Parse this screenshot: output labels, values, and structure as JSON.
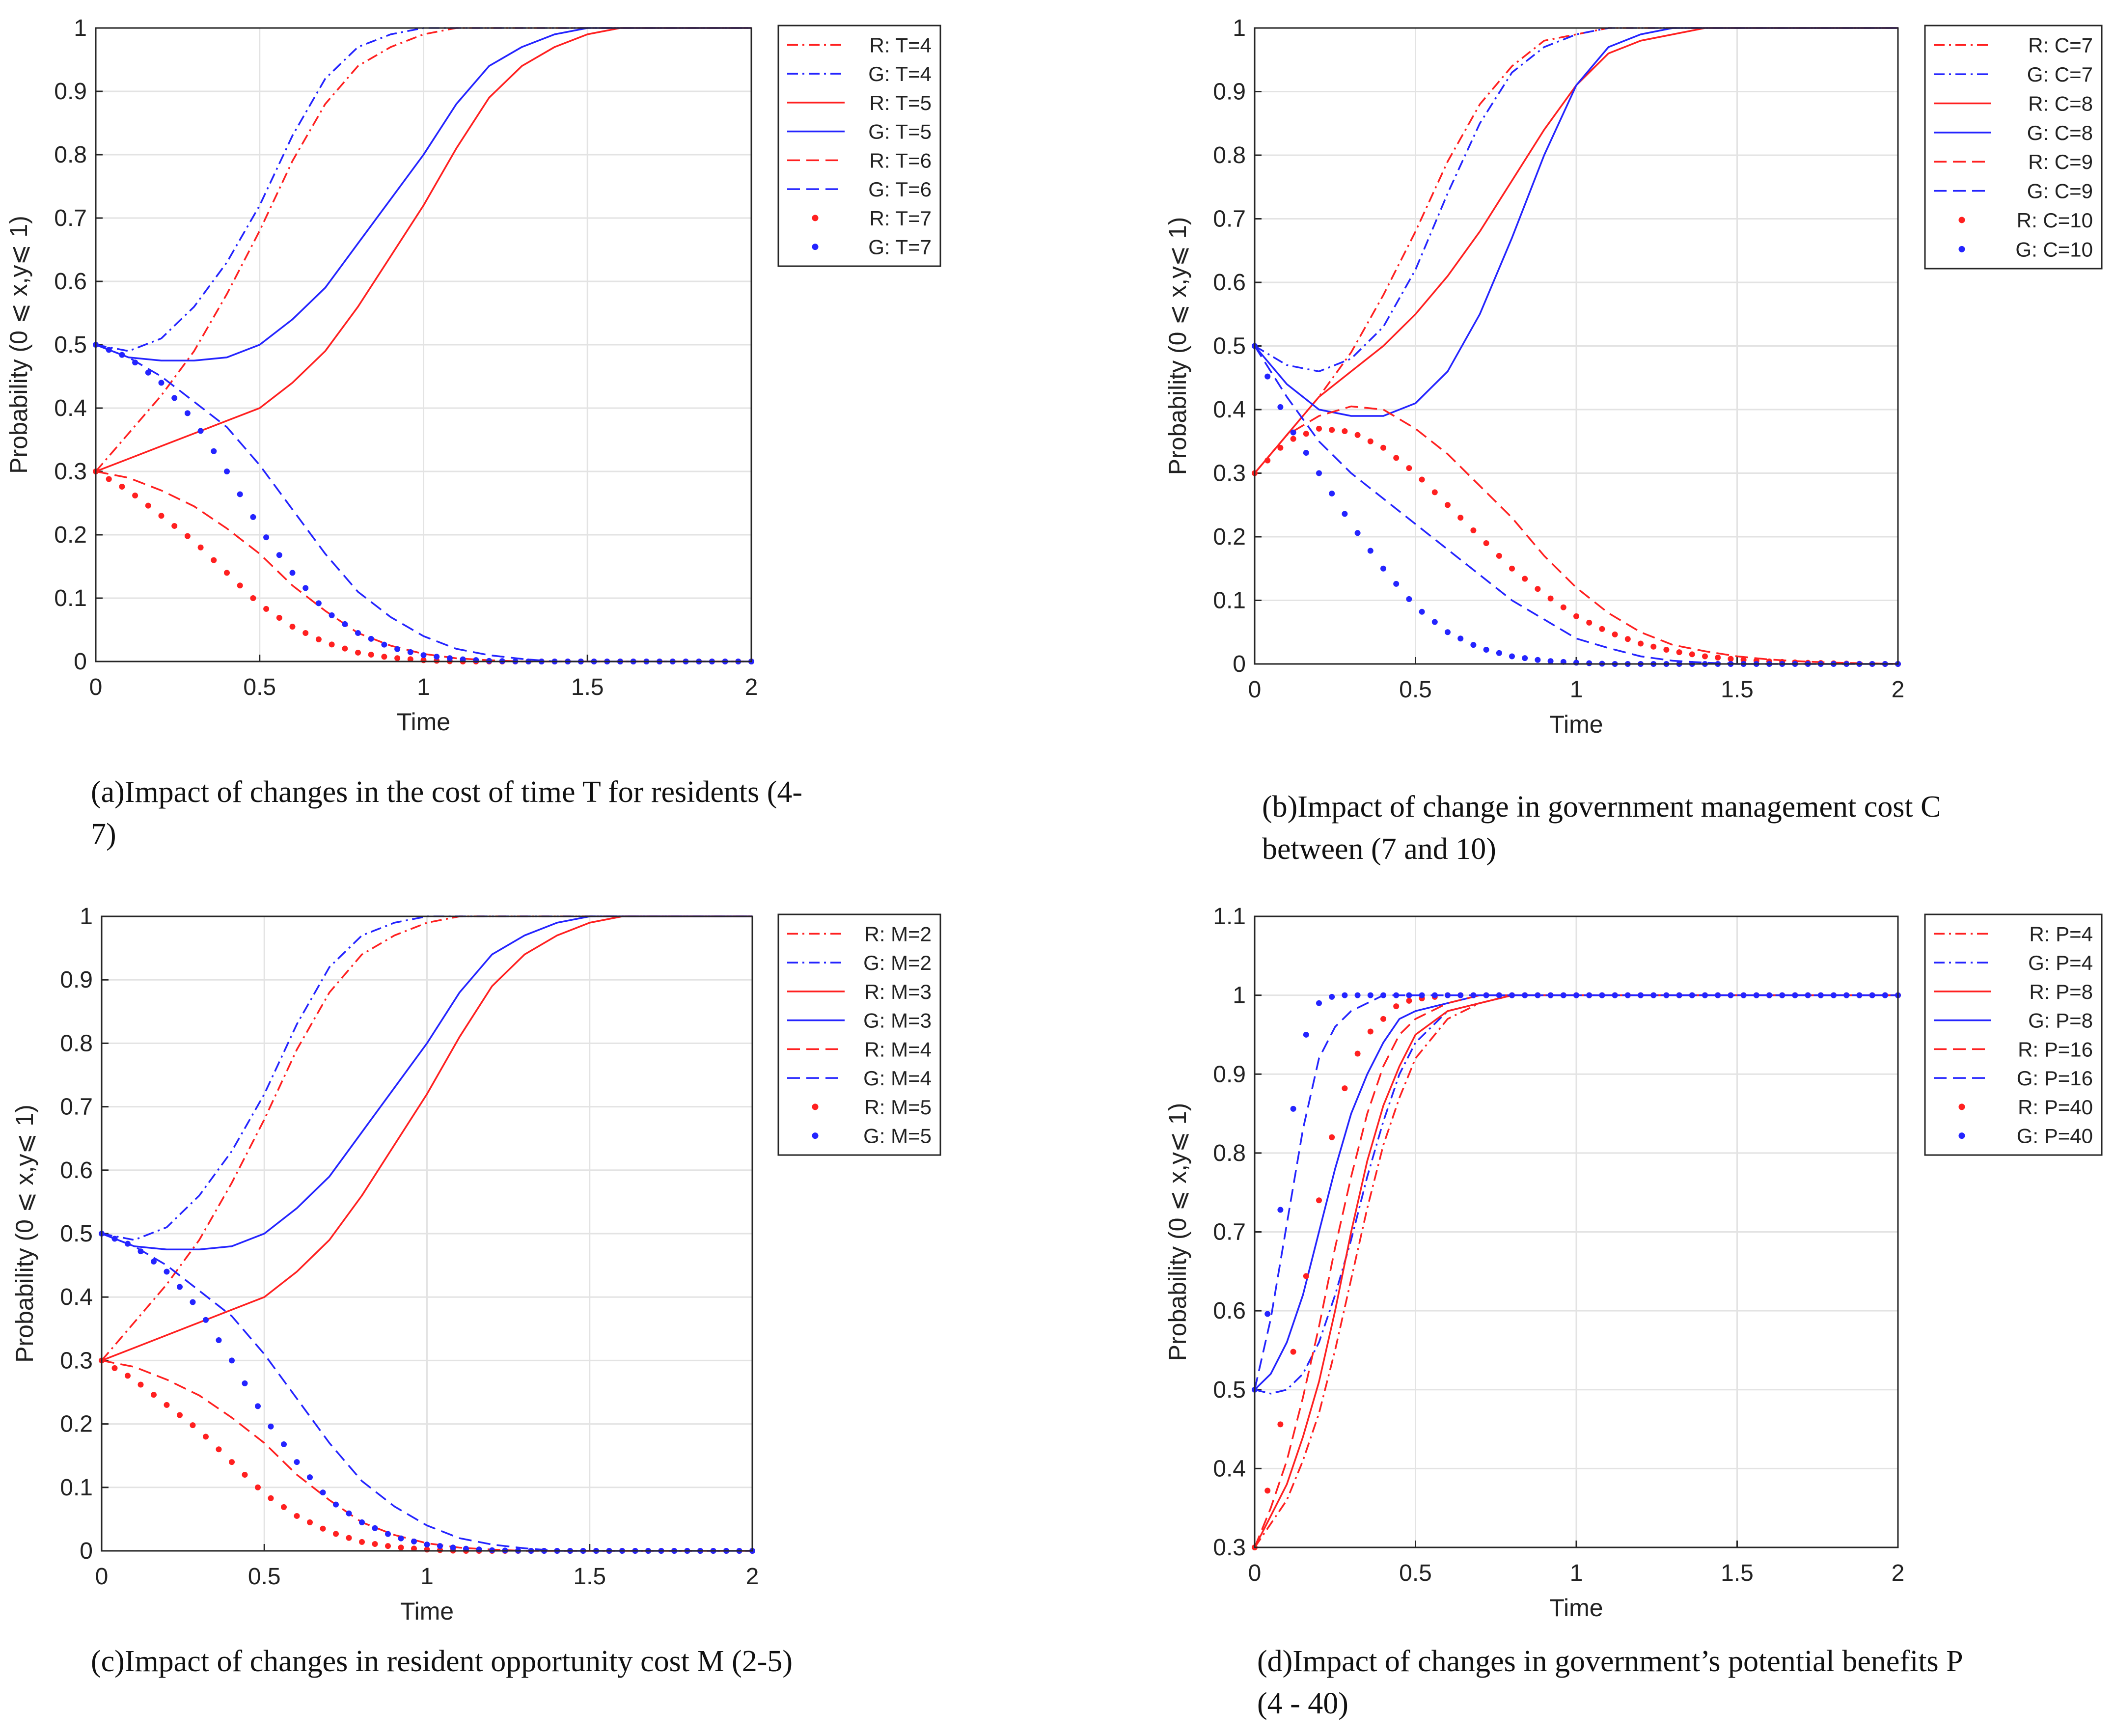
{
  "colors": {
    "R": "#ff2020",
    "G": "#2424ff",
    "grid": "#e3e3e3",
    "axis": "#262626"
  },
  "chart_data": [
    {
      "type": "line",
      "caption": "(a)Impact of changes in the cost of time T for residents (4-7)",
      "xlabel": "Time",
      "ylabel": "Probability (0 ⩽ x,y⩽ 1)",
      "xlim": [
        0,
        2
      ],
      "ylim": [
        0,
        1
      ],
      "xticks": [
        "0",
        "0.5",
        "1",
        "1.5",
        "2"
      ],
      "yticks": [
        "0",
        "0.1",
        "0.2",
        "0.3",
        "0.4",
        "0.5",
        "0.6",
        "0.7",
        "0.8",
        "0.9",
        "1"
      ],
      "grid": true,
      "legend_position": "top-right",
      "x": [
        0,
        0.1,
        0.2,
        0.3,
        0.4,
        0.5,
        0.6,
        0.7,
        0.8,
        0.9,
        1.0,
        1.1,
        1.2,
        1.3,
        1.4,
        1.5,
        1.6,
        1.7,
        1.8,
        1.9,
        2.0
      ],
      "series": [
        {
          "name": "R: T=4",
          "style": "dashdot",
          "color": "R",
          "values": [
            0.3,
            0.36,
            0.42,
            0.49,
            0.58,
            0.68,
            0.79,
            0.88,
            0.94,
            0.97,
            0.99,
            1,
            1,
            1,
            1,
            1,
            1,
            1,
            1,
            1,
            1
          ]
        },
        {
          "name": "G: T=4",
          "style": "dashdot",
          "color": "G",
          "values": [
            0.5,
            0.49,
            0.51,
            0.56,
            0.63,
            0.72,
            0.83,
            0.92,
            0.97,
            0.99,
            1,
            1,
            1,
            1,
            1,
            1,
            1,
            1,
            1,
            1,
            1
          ]
        },
        {
          "name": "R: T=5",
          "style": "solid",
          "color": "R",
          "values": [
            0.3,
            0.32,
            0.34,
            0.36,
            0.38,
            0.4,
            0.44,
            0.49,
            0.56,
            0.64,
            0.72,
            0.81,
            0.89,
            0.94,
            0.97,
            0.99,
            1,
            1,
            1,
            1,
            1
          ]
        },
        {
          "name": "G: T=5",
          "style": "solid",
          "color": "G",
          "values": [
            0.5,
            0.48,
            0.475,
            0.475,
            0.48,
            0.5,
            0.54,
            0.59,
            0.66,
            0.73,
            0.8,
            0.88,
            0.94,
            0.97,
            0.99,
            1,
            1,
            1,
            1,
            1,
            1
          ]
        },
        {
          "name": "R: T=6",
          "style": "dashed",
          "color": "R",
          "values": [
            0.3,
            0.29,
            0.27,
            0.245,
            0.21,
            0.17,
            0.12,
            0.08,
            0.045,
            0.025,
            0.012,
            0.005,
            0.002,
            0,
            0,
            0,
            0,
            0,
            0,
            0,
            0
          ]
        },
        {
          "name": "G: T=6",
          "style": "dashed",
          "color": "G",
          "values": [
            0.5,
            0.48,
            0.45,
            0.41,
            0.37,
            0.31,
            0.24,
            0.17,
            0.11,
            0.07,
            0.04,
            0.02,
            0.01,
            0.004,
            0,
            0,
            0,
            0,
            0,
            0,
            0
          ]
        },
        {
          "name": "R: T=7",
          "style": "dotted",
          "color": "R",
          "values": [
            0.3,
            0.27,
            0.23,
            0.19,
            0.14,
            0.09,
            0.055,
            0.03,
            0.014,
            0.006,
            0.002,
            0,
            0,
            0,
            0,
            0,
            0,
            0,
            0,
            0,
            0
          ]
        },
        {
          "name": "G: T=7",
          "style": "dotted",
          "color": "G",
          "values": [
            0.5,
            0.48,
            0.44,
            0.38,
            0.3,
            0.21,
            0.14,
            0.08,
            0.045,
            0.022,
            0.01,
            0.004,
            0.001,
            0,
            0,
            0,
            0,
            0,
            0,
            0,
            0
          ]
        }
      ]
    },
    {
      "type": "line",
      "caption": "(b)Impact of change in government management cost C between (7 and 10)",
      "xlabel": "Time",
      "ylabel": "Probability (0 ⩽ x,y⩽ 1)",
      "xlim": [
        0,
        2
      ],
      "ylim": [
        0,
        1
      ],
      "xticks": [
        "0",
        "0.5",
        "1",
        "1.5",
        "2"
      ],
      "yticks": [
        "0",
        "0.1",
        "0.2",
        "0.3",
        "0.4",
        "0.5",
        "0.6",
        "0.7",
        "0.8",
        "0.9",
        "1"
      ],
      "grid": true,
      "legend_position": "top-right",
      "x": [
        0,
        0.1,
        0.2,
        0.3,
        0.4,
        0.5,
        0.6,
        0.7,
        0.8,
        0.9,
        1.0,
        1.1,
        1.2,
        1.3,
        1.4,
        1.5,
        1.6,
        1.7,
        1.8,
        1.9,
        2.0
      ],
      "series": [
        {
          "name": "R: C=7",
          "style": "dashdot",
          "color": "R",
          "values": [
            0.3,
            0.36,
            0.42,
            0.49,
            0.58,
            0.68,
            0.79,
            0.88,
            0.94,
            0.98,
            0.99,
            1,
            1,
            1,
            1,
            1,
            1,
            1,
            1,
            1,
            1
          ]
        },
        {
          "name": "G: C=7",
          "style": "dashdot",
          "color": "G",
          "values": [
            0.5,
            0.47,
            0.46,
            0.48,
            0.53,
            0.62,
            0.74,
            0.85,
            0.93,
            0.97,
            0.99,
            1,
            1,
            1,
            1,
            1,
            1,
            1,
            1,
            1,
            1
          ]
        },
        {
          "name": "R: C=8",
          "style": "solid",
          "color": "R",
          "values": [
            0.3,
            0.36,
            0.42,
            0.46,
            0.5,
            0.55,
            0.61,
            0.68,
            0.76,
            0.84,
            0.91,
            0.96,
            0.98,
            0.99,
            1,
            1,
            1,
            1,
            1,
            1,
            1
          ]
        },
        {
          "name": "G: C=8",
          "style": "solid",
          "color": "G",
          "values": [
            0.5,
            0.44,
            0.4,
            0.39,
            0.39,
            0.41,
            0.46,
            0.55,
            0.67,
            0.8,
            0.91,
            0.97,
            0.99,
            1,
            1,
            1,
            1,
            1,
            1,
            1,
            1
          ]
        },
        {
          "name": "R: C=9",
          "style": "dashed",
          "color": "R",
          "values": [
            0.3,
            0.36,
            0.39,
            0.405,
            0.4,
            0.37,
            0.33,
            0.28,
            0.23,
            0.17,
            0.12,
            0.08,
            0.05,
            0.03,
            0.02,
            0.012,
            0.007,
            0.004,
            0.002,
            0.001,
            0
          ]
        },
        {
          "name": "G: C=9",
          "style": "dashed",
          "color": "G",
          "values": [
            0.5,
            0.42,
            0.35,
            0.3,
            0.26,
            0.22,
            0.18,
            0.14,
            0.1,
            0.07,
            0.04,
            0.025,
            0.012,
            0.005,
            0.002,
            0,
            0,
            0,
            0,
            0,
            0
          ]
        },
        {
          "name": "R: C=10",
          "style": "dotted",
          "color": "R",
          "values": [
            0.3,
            0.35,
            0.37,
            0.365,
            0.34,
            0.3,
            0.25,
            0.2,
            0.15,
            0.11,
            0.075,
            0.05,
            0.032,
            0.02,
            0.012,
            0.007,
            0.004,
            0.002,
            0.001,
            0,
            0
          ]
        },
        {
          "name": "G: C=10",
          "style": "dotted",
          "color": "G",
          "values": [
            0.5,
            0.38,
            0.3,
            0.22,
            0.15,
            0.09,
            0.05,
            0.025,
            0.012,
            0.005,
            0.002,
            0,
            0,
            0,
            0,
            0,
            0,
            0,
            0,
            0,
            0
          ]
        }
      ]
    },
    {
      "type": "line",
      "caption": "(c)Impact of changes in resident opportunity cost M (2-5)",
      "xlabel": "Time",
      "ylabel": "Probability (0 ⩽ x,y⩽ 1)",
      "xlim": [
        0,
        2
      ],
      "ylim": [
        0,
        1
      ],
      "xticks": [
        "0",
        "0.5",
        "1",
        "1.5",
        "2"
      ],
      "yticks": [
        "0",
        "0.1",
        "0.2",
        "0.3",
        "0.4",
        "0.5",
        "0.6",
        "0.7",
        "0.8",
        "0.9",
        "1"
      ],
      "grid": true,
      "legend_position": "top-right",
      "x": [
        0,
        0.1,
        0.2,
        0.3,
        0.4,
        0.5,
        0.6,
        0.7,
        0.8,
        0.9,
        1.0,
        1.1,
        1.2,
        1.3,
        1.4,
        1.5,
        1.6,
        1.7,
        1.8,
        1.9,
        2.0
      ],
      "series": [
        {
          "name": "R: M=2",
          "style": "dashdot",
          "color": "R",
          "values": [
            0.3,
            0.36,
            0.42,
            0.49,
            0.58,
            0.68,
            0.79,
            0.88,
            0.94,
            0.97,
            0.99,
            1,
            1,
            1,
            1,
            1,
            1,
            1,
            1,
            1,
            1
          ]
        },
        {
          "name": "G: M=2",
          "style": "dashdot",
          "color": "G",
          "values": [
            0.5,
            0.49,
            0.51,
            0.56,
            0.63,
            0.72,
            0.83,
            0.92,
            0.97,
            0.99,
            1,
            1,
            1,
            1,
            1,
            1,
            1,
            1,
            1,
            1,
            1
          ]
        },
        {
          "name": "R: M=3",
          "style": "solid",
          "color": "R",
          "values": [
            0.3,
            0.32,
            0.34,
            0.36,
            0.38,
            0.4,
            0.44,
            0.49,
            0.56,
            0.64,
            0.72,
            0.81,
            0.89,
            0.94,
            0.97,
            0.99,
            1,
            1,
            1,
            1,
            1
          ]
        },
        {
          "name": "G: M=3",
          "style": "solid",
          "color": "G",
          "values": [
            0.5,
            0.48,
            0.475,
            0.475,
            0.48,
            0.5,
            0.54,
            0.59,
            0.66,
            0.73,
            0.8,
            0.88,
            0.94,
            0.97,
            0.99,
            1,
            1,
            1,
            1,
            1,
            1
          ]
        },
        {
          "name": "R: M=4",
          "style": "dashed",
          "color": "R",
          "values": [
            0.3,
            0.29,
            0.27,
            0.245,
            0.21,
            0.17,
            0.12,
            0.08,
            0.045,
            0.025,
            0.012,
            0.005,
            0.002,
            0,
            0,
            0,
            0,
            0,
            0,
            0,
            0
          ]
        },
        {
          "name": "G: M=4",
          "style": "dashed",
          "color": "G",
          "values": [
            0.5,
            0.48,
            0.45,
            0.41,
            0.37,
            0.31,
            0.24,
            0.17,
            0.11,
            0.07,
            0.04,
            0.02,
            0.01,
            0.004,
            0,
            0,
            0,
            0,
            0,
            0,
            0
          ]
        },
        {
          "name": "R: M=5",
          "style": "dotted",
          "color": "R",
          "values": [
            0.3,
            0.27,
            0.23,
            0.19,
            0.14,
            0.09,
            0.055,
            0.03,
            0.014,
            0.006,
            0.002,
            0,
            0,
            0,
            0,
            0,
            0,
            0,
            0,
            0,
            0
          ]
        },
        {
          "name": "G: M=5",
          "style": "dotted",
          "color": "G",
          "values": [
            0.5,
            0.48,
            0.44,
            0.38,
            0.3,
            0.21,
            0.14,
            0.08,
            0.045,
            0.022,
            0.01,
            0.004,
            0.001,
            0,
            0,
            0,
            0,
            0,
            0,
            0,
            0
          ]
        }
      ]
    },
    {
      "type": "line",
      "caption": "(d)Impact of changes in government’s potential benefits P (4 - 40)",
      "xlabel": "Time",
      "ylabel": "Probability (0 ⩽ x,y⩽ 1)",
      "xlim": [
        0,
        2
      ],
      "ylim": [
        0.3,
        1.1
      ],
      "xticks": [
        "0",
        "0.5",
        "1",
        "1.5",
        "2"
      ],
      "yticks": [
        "0.3",
        "0.4",
        "0.5",
        "0.6",
        "0.7",
        "0.8",
        "0.9",
        "1",
        "1.1"
      ],
      "grid": true,
      "legend_position": "top-right",
      "x": [
        0,
        0.05,
        0.1,
        0.15,
        0.2,
        0.25,
        0.3,
        0.35,
        0.4,
        0.45,
        0.5,
        0.6,
        0.7,
        0.8,
        0.9,
        1.0,
        1.2,
        1.4,
        1.6,
        1.8,
        2.0
      ],
      "series": [
        {
          "name": "R: P=4",
          "style": "dashdot",
          "color": "R",
          "values": [
            0.3,
            0.33,
            0.36,
            0.41,
            0.47,
            0.55,
            0.64,
            0.73,
            0.81,
            0.87,
            0.92,
            0.97,
            0.99,
            1,
            1,
            1,
            1,
            1,
            1,
            1,
            1
          ]
        },
        {
          "name": "G: P=4",
          "style": "dashdot",
          "color": "G",
          "values": [
            0.5,
            0.495,
            0.5,
            0.52,
            0.56,
            0.62,
            0.69,
            0.77,
            0.84,
            0.9,
            0.94,
            0.98,
            0.99,
            1,
            1,
            1,
            1,
            1,
            1,
            1,
            1
          ]
        },
        {
          "name": "R: P=8",
          "style": "solid",
          "color": "R",
          "values": [
            0.3,
            0.34,
            0.38,
            0.44,
            0.51,
            0.6,
            0.7,
            0.79,
            0.86,
            0.91,
            0.95,
            0.98,
            0.99,
            1,
            1,
            1,
            1,
            1,
            1,
            1,
            1
          ]
        },
        {
          "name": "G: P=8",
          "style": "solid",
          "color": "G",
          "values": [
            0.5,
            0.52,
            0.56,
            0.62,
            0.7,
            0.78,
            0.85,
            0.9,
            0.94,
            0.97,
            0.98,
            0.99,
            1,
            1,
            1,
            1,
            1,
            1,
            1,
            1,
            1
          ]
        },
        {
          "name": "R: P=16",
          "style": "dashed",
          "color": "R",
          "values": [
            0.3,
            0.35,
            0.41,
            0.49,
            0.58,
            0.68,
            0.77,
            0.85,
            0.91,
            0.95,
            0.97,
            0.99,
            1,
            1,
            1,
            1,
            1,
            1,
            1,
            1,
            1
          ]
        },
        {
          "name": "G: P=16",
          "style": "dashed",
          "color": "G",
          "values": [
            0.5,
            0.59,
            0.71,
            0.83,
            0.92,
            0.96,
            0.98,
            0.99,
            1,
            1,
            1,
            1,
            1,
            1,
            1,
            1,
            1,
            1,
            1,
            1,
            1
          ]
        },
        {
          "name": "R: P=40",
          "style": "dotted",
          "color": "R",
          "values": [
            0.3,
            0.39,
            0.5,
            0.62,
            0.74,
            0.84,
            0.91,
            0.95,
            0.97,
            0.99,
            0.995,
            1,
            1,
            1,
            1,
            1,
            1,
            1,
            1,
            1,
            1
          ]
        },
        {
          "name": "G: P=40",
          "style": "dotted",
          "color": "G",
          "values": [
            0.5,
            0.62,
            0.8,
            0.94,
            0.99,
            1,
            1,
            1,
            1,
            1,
            1,
            1,
            1,
            1,
            1,
            1,
            1,
            1,
            1,
            1,
            1
          ]
        }
      ]
    }
  ]
}
